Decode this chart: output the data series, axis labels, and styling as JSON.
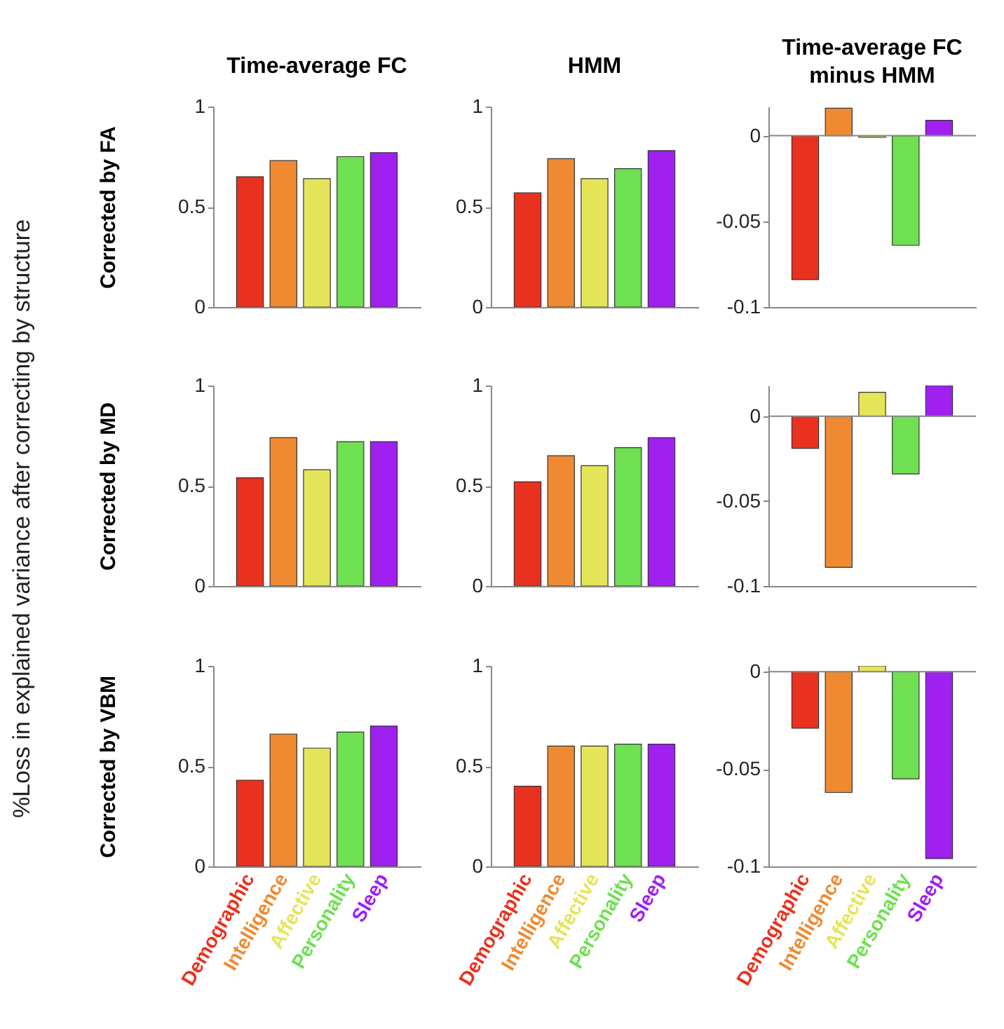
{
  "chart_data": [
    {
      "type": "bar",
      "title": "Time-average FC",
      "ylabel": "Corrected by FA",
      "annotations": [
        "%Loss in explained variance after correcting by structure"
      ],
      "categories": [
        null,
        null,
        null,
        null,
        null
      ],
      "values": [
        0.65,
        0.73,
        0.64,
        0.75,
        0.77
      ],
      "colors": [
        "#e8321f",
        "#ef8a32",
        "#e5e55a",
        "#6fe052",
        "#a020f0"
      ],
      "ylim": [
        0,
        1
      ],
      "yticks": [
        0,
        0.5,
        1
      ],
      "tick_labels": "y"
    },
    {
      "type": "bar",
      "title": "HMM",
      "categories": [
        null,
        null,
        null,
        null,
        null
      ],
      "values": [
        0.57,
        0.74,
        0.64,
        0.69,
        0.78
      ],
      "colors": [
        "#e8321f",
        "#ef8a32",
        "#e5e55a",
        "#6fe052",
        "#a020f0"
      ],
      "ylim": [
        0,
        1
      ],
      "yticks": [
        0,
        0.5,
        1
      ],
      "tick_labels": "y"
    },
    {
      "type": "bar",
      "title": "Time-average FC\nminus HMM",
      "categories": [
        null,
        null,
        null,
        null,
        null
      ],
      "values": [
        -0.084,
        0.016,
        -0.001,
        -0.064,
        0.009
      ],
      "colors": [
        "#e8321f",
        "#ef8a32",
        "#e5e55a",
        "#6fe052",
        "#a020f0"
      ],
      "ylim": [
        -0.1,
        0.017
      ],
      "yticks": [
        -0.1,
        -0.05,
        0
      ],
      "tick_labels": "y",
      "ref_lines": [
        {
          "axis": "y",
          "value": 0
        }
      ]
    },
    {
      "type": "bar",
      "ylabel": "Corrected by MD",
      "categories": [
        null,
        null,
        null,
        null,
        null
      ],
      "values": [
        0.54,
        0.74,
        0.58,
        0.72,
        0.72
      ],
      "colors": [
        "#e8321f",
        "#ef8a32",
        "#e5e55a",
        "#6fe052",
        "#a020f0"
      ],
      "ylim": [
        0,
        1
      ],
      "yticks": [
        0,
        0.5,
        1
      ],
      "tick_labels": "y"
    },
    {
      "type": "bar",
      "categories": [
        null,
        null,
        null,
        null,
        null
      ],
      "values": [
        0.52,
        0.65,
        0.6,
        0.69,
        0.74
      ],
      "colors": [
        "#e8321f",
        "#ef8a32",
        "#e5e55a",
        "#6fe052",
        "#a020f0"
      ],
      "ylim": [
        0,
        1
      ],
      "yticks": [
        0,
        0.5,
        1
      ],
      "tick_labels": "y"
    },
    {
      "type": "bar",
      "categories": [
        null,
        null,
        null,
        null,
        null
      ],
      "values": [
        -0.019,
        -0.089,
        0.014,
        -0.034,
        0.018
      ],
      "colors": [
        "#e8321f",
        "#ef8a32",
        "#e5e55a",
        "#6fe052",
        "#a020f0"
      ],
      "ylim": [
        -0.1,
        0.018
      ],
      "yticks": [
        -0.1,
        -0.05,
        0
      ],
      "tick_labels": "y",
      "ref_lines": [
        {
          "axis": "y",
          "value": 0
        }
      ]
    },
    {
      "type": "bar",
      "ylabel": "Corrected by VBM",
      "categories": [
        "Demographic",
        "Intelligence",
        "Affective",
        "Personality",
        "Sleep"
      ],
      "values": [
        0.43,
        0.66,
        0.59,
        0.67,
        0.7
      ],
      "colors": [
        "#e8321f",
        "#ef8a32",
        "#e5e55a",
        "#6fe052",
        "#a020f0"
      ],
      "ylim": [
        0,
        1
      ],
      "yticks": [
        0,
        0.5,
        1
      ]
    },
    {
      "type": "bar",
      "categories": [
        "Demographic",
        "Intelligence",
        "Affective",
        "Personality",
        "Sleep"
      ],
      "values": [
        0.4,
        0.6,
        0.6,
        0.61,
        0.61
      ],
      "colors": [
        "#e8321f",
        "#ef8a32",
        "#e5e55a",
        "#6fe052",
        "#a020f0"
      ],
      "ylim": [
        0,
        1
      ],
      "yticks": [
        0,
        0.5,
        1
      ]
    },
    {
      "type": "bar",
      "categories": [
        "Demographic",
        "Intelligence",
        "Affective",
        "Personality",
        "Sleep"
      ],
      "values": [
        -0.029,
        -0.062,
        0.003,
        -0.055,
        -0.096
      ],
      "colors": [
        "#e8321f",
        "#ef8a32",
        "#e5e55a",
        "#6fe052",
        "#a020f0"
      ],
      "ylim": [
        -0.1,
        0.003
      ],
      "yticks": [
        -0.1,
        -0.05,
        0
      ],
      "ref_lines": [
        {
          "axis": "y",
          "value": 0
        }
      ]
    }
  ]
}
